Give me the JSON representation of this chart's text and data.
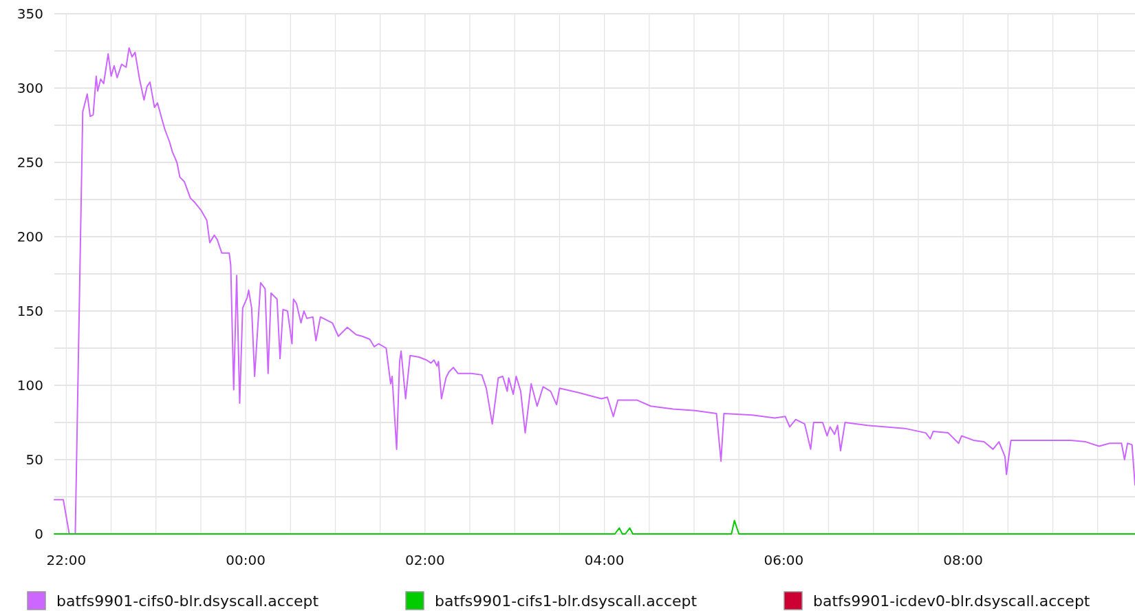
{
  "chart_data": {
    "type": "line",
    "xlim": [
      "2000-01-01T21:52",
      "2000-01-02T09:55"
    ],
    "xticks": [
      {
        "value": "2000-01-01T22:00",
        "label": "22:00"
      },
      {
        "value": "2000-01-01T22:30",
        "label": null
      },
      {
        "value": "2000-01-01T23:00",
        "label": null
      },
      {
        "value": "2000-01-01T23:30",
        "label": null
      },
      {
        "value": "2000-01-02T00:00",
        "label": "00:00"
      },
      {
        "value": "2000-01-02T00:30",
        "label": null
      },
      {
        "value": "2000-01-02T01:00",
        "label": null
      },
      {
        "value": "2000-01-02T01:30",
        "label": null
      },
      {
        "value": "2000-01-02T02:00",
        "label": "02:00"
      },
      {
        "value": "2000-01-02T02:30",
        "label": null
      },
      {
        "value": "2000-01-02T03:00",
        "label": null
      },
      {
        "value": "2000-01-02T03:30",
        "label": null
      },
      {
        "value": "2000-01-02T04:00",
        "label": "04:00"
      },
      {
        "value": "2000-01-02T04:30",
        "label": null
      },
      {
        "value": "2000-01-02T05:00",
        "label": null
      },
      {
        "value": "2000-01-02T05:30",
        "label": null
      },
      {
        "value": "2000-01-02T06:00",
        "label": "06:00"
      },
      {
        "value": "2000-01-02T06:30",
        "label": null
      },
      {
        "value": "2000-01-02T07:00",
        "label": null
      },
      {
        "value": "2000-01-02T07:30",
        "label": null
      },
      {
        "value": "2000-01-02T08:00",
        "label": "08:00"
      },
      {
        "value": "2000-01-02T08:30",
        "label": null
      },
      {
        "value": "2000-01-02T09:00",
        "label": null
      },
      {
        "value": "2000-01-02T09:30",
        "label": null
      }
    ],
    "ylim": [
      0,
      350
    ],
    "yticks": [
      0,
      {
        "value": 25,
        "label": null
      },
      50,
      {
        "value": 75,
        "label": null
      },
      100,
      {
        "value": 125,
        "label": null
      },
      150,
      {
        "value": 175,
        "label": null
      },
      200,
      {
        "value": 225,
        "label": null
      },
      250,
      {
        "value": 275,
        "label": null
      },
      300,
      {
        "value": 325,
        "label": null
      },
      350
    ],
    "grid": true,
    "legend": "bottom",
    "series": [
      {
        "name": "batfs9901-cifs0-blr.dsyscall.accept",
        "color": "#cc66ff",
        "x": [
          "2000-01-01T21:52",
          "2000-01-01T21:58",
          "2000-01-01T22:02",
          "2000-01-01T22:06",
          "2000-01-01T22:11",
          "2000-01-01T22:14",
          "2000-01-01T22:16",
          "2000-01-01T22:18",
          "2000-01-01T22:20",
          "2000-01-01T22:21",
          "2000-01-01T22:23",
          "2000-01-01T22:25",
          "2000-01-01T22:28",
          "2000-01-01T22:30",
          "2000-01-01T22:32",
          "2000-01-01T22:34",
          "2000-01-01T22:37",
          "2000-01-01T22:40",
          "2000-01-01T22:42",
          "2000-01-01T22:44",
          "2000-01-01T22:46",
          "2000-01-01T22:49",
          "2000-01-01T22:52",
          "2000-01-01T22:54",
          "2000-01-01T22:56",
          "2000-01-01T22:59",
          "2000-01-01T23:01",
          "2000-01-01T23:04",
          "2000-01-01T23:06",
          "2000-01-01T23:09",
          "2000-01-01T23:11",
          "2000-01-01T23:14",
          "2000-01-01T23:16",
          "2000-01-01T23:19",
          "2000-01-01T23:23",
          "2000-01-01T23:26",
          "2000-01-01T23:30",
          "2000-01-01T23:34",
          "2000-01-01T23:36",
          "2000-01-01T23:39",
          "2000-01-01T23:41",
          "2000-01-01T23:44",
          "2000-01-01T23:49",
          "2000-01-01T23:50",
          "2000-01-01T23:52",
          "2000-01-01T23:54",
          "2000-01-01T23:56",
          "2000-01-01T23:58",
          "2000-01-02T00:01",
          "2000-01-02T00:02",
          "2000-01-02T00:04",
          "2000-01-02T00:06",
          "2000-01-02T00:10",
          "2000-01-02T00:13",
          "2000-01-02T00:15",
          "2000-01-02T00:17",
          "2000-01-02T00:21",
          "2000-01-02T00:23",
          "2000-01-02T00:25",
          "2000-01-02T00:28",
          "2000-01-02T00:31",
          "2000-01-02T00:32",
          "2000-01-02T00:34",
          "2000-01-02T00:37",
          "2000-01-02T00:39",
          "2000-01-02T00:41",
          "2000-01-02T00:45",
          "2000-01-02T00:47",
          "2000-01-02T00:50",
          "2000-01-02T00:58",
          "2000-01-02T01:02",
          "2000-01-02T01:08",
          "2000-01-02T01:14",
          "2000-01-02T01:18",
          "2000-01-02T01:23",
          "2000-01-02T01:26",
          "2000-01-02T01:29",
          "2000-01-02T01:34",
          "2000-01-02T01:37",
          "2000-01-02T01:38",
          "2000-01-02T01:41",
          "2000-01-02T01:43",
          "2000-01-02T01:44",
          "2000-01-02T01:47",
          "2000-01-02T01:50",
          "2000-01-02T01:56",
          "2000-01-02T02:01",
          "2000-01-02T02:04",
          "2000-01-02T02:06",
          "2000-01-02T02:08",
          "2000-01-02T02:09",
          "2000-01-02T02:11",
          "2000-01-02T02:14",
          "2000-01-02T02:16",
          "2000-01-02T02:19",
          "2000-01-02T02:22",
          "2000-01-02T02:31",
          "2000-01-02T02:38",
          "2000-01-02T02:41",
          "2000-01-02T02:45",
          "2000-01-02T02:49",
          "2000-01-02T02:52",
          "2000-01-02T02:55",
          "2000-01-02T02:56",
          "2000-01-02T02:59",
          "2000-01-02T03:01",
          "2000-01-02T03:04",
          "2000-01-02T03:07",
          "2000-01-02T03:11",
          "2000-01-02T03:15",
          "2000-01-02T03:19",
          "2000-01-02T03:24",
          "2000-01-02T03:28",
          "2000-01-02T03:30",
          "2000-01-02T03:43",
          "2000-01-02T03:58",
          "2000-01-02T04:02",
          "2000-01-02T04:06",
          "2000-01-02T04:09",
          "2000-01-02T04:22",
          "2000-01-02T04:31",
          "2000-01-02T04:46",
          "2000-01-02T05:01",
          "2000-01-02T05:15",
          "2000-01-02T05:18",
          "2000-01-02T05:20",
          "2000-01-02T05:39",
          "2000-01-02T05:54",
          "2000-01-02T06:01",
          "2000-01-02T06:04",
          "2000-01-02T06:08",
          "2000-01-02T06:14",
          "2000-01-02T06:18",
          "2000-01-02T06:20",
          "2000-01-02T06:26",
          "2000-01-02T06:29",
          "2000-01-02T06:31",
          "2000-01-02T06:34",
          "2000-01-02T06:36",
          "2000-01-02T06:38",
          "2000-01-02T06:41",
          "2000-01-02T06:56",
          "2000-01-02T07:21",
          "2000-01-02T07:35",
          "2000-01-02T07:38",
          "2000-01-02T07:40",
          "2000-01-02T07:50",
          "2000-01-02T07:57",
          "2000-01-02T07:59",
          "2000-01-02T08:07",
          "2000-01-02T08:14",
          "2000-01-02T08:20",
          "2000-01-02T08:24",
          "2000-01-02T08:28",
          "2000-01-02T08:29",
          "2000-01-02T08:32",
          "2000-01-02T08:43",
          "2000-01-02T08:58",
          "2000-01-02T09:12",
          "2000-01-02T09:22",
          "2000-01-02T09:31",
          "2000-01-02T09:38",
          "2000-01-02T09:46",
          "2000-01-02T09:48",
          "2000-01-02T09:50",
          "2000-01-02T09:53",
          "2000-01-02T09:55"
        ],
        "values": [
          23,
          23,
          0,
          0,
          284,
          296,
          281,
          282,
          308,
          298,
          306,
          303,
          323,
          308,
          315,
          307,
          316,
          314,
          327,
          321,
          324,
          306,
          292,
          301,
          304,
          287,
          290,
          279,
          272,
          264,
          257,
          250,
          240,
          237,
          226,
          223,
          218,
          211,
          196,
          201,
          198,
          189,
          189,
          181,
          97,
          174,
          88,
          152,
          159,
          164,
          152,
          106,
          169,
          165,
          108,
          162,
          158,
          118,
          151,
          150,
          128,
          158,
          155,
          142,
          150,
          145,
          146,
          130,
          146,
          142,
          133,
          139,
          134,
          133,
          131,
          126,
          128,
          125,
          101,
          106,
          57,
          116,
          123,
          91,
          120,
          119,
          117,
          115,
          117,
          113,
          116,
          91,
          105,
          109,
          112,
          108,
          108,
          107,
          98,
          74,
          105,
          106,
          96,
          105,
          94,
          106,
          96,
          68,
          101,
          86,
          99,
          96,
          87,
          98,
          95,
          91,
          92,
          79,
          90,
          90,
          86,
          84,
          83,
          81,
          49,
          81,
          80,
          78,
          79,
          72,
          77,
          74,
          57,
          75,
          75,
          66,
          72,
          67,
          73,
          56,
          75,
          73,
          71,
          68,
          64,
          69,
          68,
          61,
          66,
          63,
          62,
          57,
          62,
          52,
          40,
          63,
          63,
          63,
          63,
          62,
          59,
          61,
          61,
          50,
          61,
          60,
          33
        ]
      },
      {
        "name": "batfs9901-cifs1-blr.dsyscall.accept",
        "color": "#00cc00",
        "x": [
          "2000-01-01T21:52",
          "2000-01-01T23:59",
          "2000-01-02T00:02",
          "2000-01-02T01:43",
          "2000-01-02T01:46",
          "2000-01-02T04:07",
          "2000-01-02T04:10",
          "2000-01-02T04:12",
          "2000-01-02T04:14",
          "2000-01-02T04:17",
          "2000-01-02T04:19",
          "2000-01-02T05:25",
          "2000-01-02T05:27",
          "2000-01-02T05:30",
          "2000-01-02T09:55"
        ],
        "values": [
          0,
          0,
          0,
          0,
          0,
          0,
          4,
          0,
          0,
          4,
          0,
          0,
          9,
          0,
          0
        ]
      },
      {
        "name": "batfs9901-icdev0-blr.dsyscall.accept",
        "color": "#cc0033"
      }
    ]
  }
}
